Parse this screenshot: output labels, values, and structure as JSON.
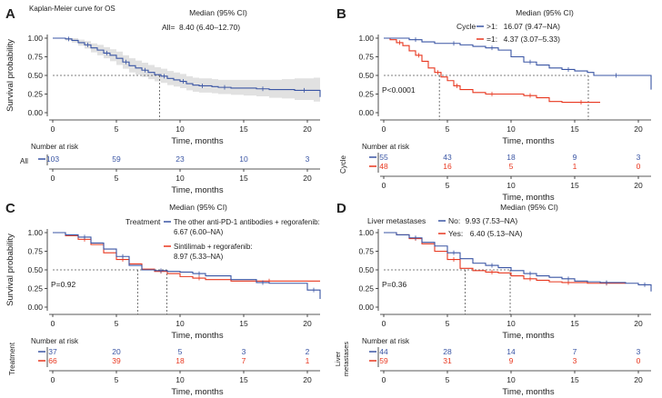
{
  "colors": {
    "blue": "#3a55a4",
    "red": "#e8371f",
    "band": "#dcdcdc",
    "axis": "#222222",
    "ref": "#555555"
  },
  "common": {
    "ylabel": "Survival probability",
    "xlabel": "Time, months",
    "yticks": [
      "0.00",
      "0.25",
      "0.50",
      "0.75",
      "1.00"
    ],
    "xticks": [
      "0",
      "5",
      "10",
      "15",
      "20"
    ],
    "risk_title": "Number at risk",
    "median_header": "Median (95% CI)"
  },
  "chart_data": [
    {
      "panel": "A",
      "type": "line",
      "title": "Kaplan-Meier curve for OS",
      "xlim": [
        0,
        21
      ],
      "ylim": [
        0,
        1
      ],
      "xlabel": "Time, months",
      "ylabel": "Survival probability",
      "legend_title": "",
      "ci_band": true,
      "median_refs": [
        8.4
      ],
      "series": [
        {
          "name": "All",
          "label": "All=",
          "median": "8.40 (6.40–12.70)",
          "color": "blue",
          "risk_label": "All",
          "risk": [
            "103",
            "59",
            "23",
            "10",
            "3"
          ],
          "x": [
            0,
            0.5,
            1.0,
            1.5,
            2.0,
            2.5,
            3.0,
            3.5,
            4.0,
            4.5,
            5.0,
            5.5,
            6.0,
            6.5,
            7.0,
            7.5,
            8.0,
            8.5,
            9.0,
            9.5,
            10.0,
            10.5,
            11.0,
            11.5,
            12.0,
            12.5,
            13.0,
            14.0,
            15.0,
            16.0,
            17.0,
            18.0,
            19.0,
            20.5,
            21.0
          ],
          "y": [
            1.0,
            1.0,
            0.99,
            0.97,
            0.94,
            0.91,
            0.87,
            0.84,
            0.8,
            0.77,
            0.73,
            0.68,
            0.63,
            0.6,
            0.57,
            0.54,
            0.51,
            0.49,
            0.46,
            0.44,
            0.42,
            0.39,
            0.37,
            0.36,
            0.36,
            0.35,
            0.34,
            0.33,
            0.33,
            0.32,
            0.31,
            0.31,
            0.3,
            0.3,
            0.21
          ],
          "ci_lo": [
            1.0,
            1.0,
            0.97,
            0.94,
            0.9,
            0.86,
            0.81,
            0.77,
            0.73,
            0.69,
            0.64,
            0.59,
            0.54,
            0.51,
            0.48,
            0.45,
            0.42,
            0.4,
            0.37,
            0.35,
            0.33,
            0.3,
            0.28,
            0.27,
            0.27,
            0.26,
            0.25,
            0.24,
            0.23,
            0.22,
            0.2,
            0.19,
            0.17,
            0.15,
            0.06
          ],
          "ci_hi": [
            1.0,
            1.0,
            1.0,
            1.0,
            0.98,
            0.96,
            0.93,
            0.91,
            0.88,
            0.85,
            0.82,
            0.77,
            0.73,
            0.7,
            0.67,
            0.64,
            0.61,
            0.59,
            0.56,
            0.54,
            0.52,
            0.49,
            0.47,
            0.46,
            0.46,
            0.45,
            0.44,
            0.44,
            0.44,
            0.44,
            0.44,
            0.45,
            0.46,
            0.47,
            0.4
          ]
        }
      ]
    },
    {
      "panel": "B",
      "type": "line",
      "title": "",
      "xlim": [
        0,
        21
      ],
      "ylim": [
        0,
        1
      ],
      "xlabel": "Time, months",
      "ylabel": "",
      "legend_title": "Cycle",
      "pvalue": "P<0.0001",
      "risk_strata_title": "Cycle",
      "ci_band": false,
      "median_refs": [
        4.37,
        16.07
      ],
      "series": [
        {
          "name": ">1",
          "label": ">1:",
          "median": "16.07 (9.47–NA)",
          "color": "blue",
          "risk": [
            "55",
            "43",
            "18",
            "9",
            "3"
          ],
          "x": [
            0,
            1,
            2,
            3,
            4,
            5,
            6,
            7,
            8,
            9,
            10,
            11,
            12,
            13,
            14,
            15,
            16,
            16.5,
            20,
            21
          ],
          "y": [
            1.0,
            1.0,
            0.98,
            0.95,
            0.93,
            0.93,
            0.91,
            0.89,
            0.87,
            0.84,
            0.75,
            0.68,
            0.64,
            0.6,
            0.58,
            0.56,
            0.54,
            0.5,
            0.5,
            0.31
          ]
        },
        {
          "name": "=1",
          "label": "=1:",
          "median": "4.37 (3.07–5.33)",
          "color": "red",
          "risk": [
            "48",
            "16",
            "5",
            "1",
            "0"
          ],
          "x": [
            0,
            0.5,
            1.0,
            1.5,
            2.0,
            2.5,
            3.0,
            3.5,
            4.0,
            4.5,
            5.0,
            5.5,
            6.0,
            7.0,
            8.0,
            9.0,
            10.0,
            11.0,
            12.0,
            13.0,
            14.0,
            17.0
          ],
          "y": [
            1.0,
            0.98,
            0.94,
            0.9,
            0.83,
            0.77,
            0.69,
            0.6,
            0.54,
            0.48,
            0.43,
            0.36,
            0.31,
            0.27,
            0.25,
            0.25,
            0.25,
            0.23,
            0.2,
            0.15,
            0.14,
            0.14
          ]
        }
      ]
    },
    {
      "panel": "C",
      "type": "line",
      "title": "",
      "xlim": [
        0,
        21
      ],
      "ylim": [
        0,
        1
      ],
      "xlabel": "Time, months",
      "ylabel": "Survival probability",
      "legend_title": "Treatment",
      "pvalue": "P=0.92",
      "risk_strata_title": "Treatment",
      "ci_band": false,
      "median_refs": [
        6.67,
        8.97
      ],
      "series": [
        {
          "name": "The other anti-PD-1 antibodies + regorafenib",
          "label": "The other anti-PD-1 antibodies + regorafenib:",
          "median": "6.67 (6.00–NA)",
          "color": "blue",
          "risk": [
            "37",
            "20",
            "5",
            "3",
            "2"
          ],
          "x": [
            0,
            1,
            2,
            3,
            4,
            5,
            6,
            7,
            8,
            9,
            10,
            11,
            12,
            14,
            16,
            17,
            19,
            20,
            21
          ],
          "y": [
            1.0,
            0.97,
            0.94,
            0.86,
            0.78,
            0.68,
            0.56,
            0.5,
            0.49,
            0.48,
            0.47,
            0.45,
            0.42,
            0.37,
            0.33,
            0.32,
            0.32,
            0.23,
            0.11
          ]
        },
        {
          "name": "Sintilimab + regorafenib",
          "label": "Sintilimab + regorafenib:",
          "median": "8.97 (5.33–NA)",
          "color": "red",
          "risk": [
            "66",
            "39",
            "18",
            "7",
            "1"
          ],
          "x": [
            0,
            1,
            2,
            3,
            4,
            5,
            6,
            7,
            8,
            9,
            10,
            11,
            12,
            14,
            16,
            18,
            21
          ],
          "y": [
            1.0,
            0.96,
            0.91,
            0.84,
            0.73,
            0.64,
            0.58,
            0.51,
            0.48,
            0.45,
            0.41,
            0.39,
            0.37,
            0.35,
            0.35,
            0.35,
            0.35
          ]
        }
      ]
    },
    {
      "panel": "D",
      "type": "line",
      "title": "",
      "xlim": [
        0,
        21
      ],
      "ylim": [
        0,
        1
      ],
      "xlabel": "Time, months",
      "ylabel": "",
      "legend_title": "Liver metastases",
      "pvalue": "P=0.36",
      "risk_strata_title": "Liver metastases",
      "ci_band": false,
      "median_refs": [
        6.4,
        9.93
      ],
      "series": [
        {
          "name": "No",
          "label": "No:",
          "median": "9.93 (7.53–NA)",
          "color": "blue",
          "risk": [
            "44",
            "28",
            "14",
            "7",
            "3"
          ],
          "x": [
            0,
            1,
            2,
            3,
            4,
            5,
            6,
            7,
            8,
            9,
            10,
            11,
            12,
            13,
            14,
            15,
            16,
            17,
            18,
            19,
            20,
            21
          ],
          "y": [
            1.0,
            0.97,
            0.93,
            0.87,
            0.82,
            0.73,
            0.65,
            0.59,
            0.56,
            0.53,
            0.49,
            0.45,
            0.42,
            0.4,
            0.38,
            0.35,
            0.34,
            0.33,
            0.33,
            0.32,
            0.3,
            0.21
          ]
        },
        {
          "name": "Yes",
          "label": "Yes:",
          "median": "6.40 (5.13–NA)",
          "color": "red",
          "risk": [
            "59",
            "31",
            "9",
            "3",
            "0"
          ],
          "x": [
            0,
            1,
            2,
            3,
            4,
            5,
            6,
            7,
            8,
            9,
            10,
            11,
            12,
            13,
            14,
            15,
            16,
            17,
            18,
            19
          ],
          "y": [
            1.0,
            0.97,
            0.92,
            0.85,
            0.75,
            0.64,
            0.52,
            0.49,
            0.47,
            0.46,
            0.42,
            0.38,
            0.36,
            0.34,
            0.33,
            0.33,
            0.32,
            0.32,
            0.32,
            0.32
          ]
        }
      ]
    }
  ]
}
